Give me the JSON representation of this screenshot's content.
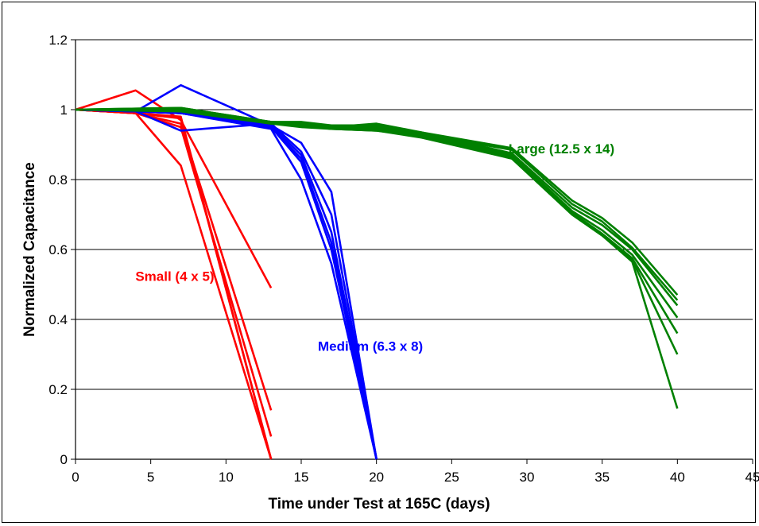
{
  "chart_data": {
    "type": "line",
    "title": "",
    "xlabel": "Time under Test at 165C (days)",
    "ylabel": "Normalized Capacitance",
    "xlim": [
      0,
      45
    ],
    "ylim": [
      0,
      1.2
    ],
    "xticks": [
      "0",
      "5",
      "10",
      "15",
      "20",
      "25",
      "30",
      "35",
      "40",
      "45"
    ],
    "yticks": [
      "0",
      "0.2",
      "0.4",
      "0.6",
      "0.8",
      "1",
      "1.2"
    ],
    "grid": "horizontal",
    "legend": "none",
    "groups": [
      {
        "label": "Small (4 x 5)",
        "color": "#ff0000",
        "label_at": [
          6.6,
          0.51
        ],
        "series": [
          {
            "x": [
              0,
              4,
              7,
              13
            ],
            "y": [
              1.0,
              1.055,
              0.97,
              0.49
            ]
          },
          {
            "x": [
              0,
              4,
              7,
              13
            ],
            "y": [
              1.0,
              0.99,
              0.96,
              0.14
            ]
          },
          {
            "x": [
              0,
              4,
              7,
              13
            ],
            "y": [
              1.0,
              0.99,
              0.95,
              0.065
            ]
          },
          {
            "x": [
              0,
              4,
              7,
              13
            ],
            "y": [
              1.0,
              0.99,
              0.975,
              0.0
            ]
          },
          {
            "x": [
              0,
              4,
              7,
              13
            ],
            "y": [
              1.0,
              0.99,
              0.84,
              0.0
            ]
          },
          {
            "x": [
              0,
              4,
              7,
              13
            ],
            "y": [
              1.0,
              0.99,
              0.98,
              0.0
            ]
          }
        ]
      },
      {
        "label": "Medium (6.3 x 8)",
        "color": "#0000ff",
        "label_at": [
          19.6,
          0.31
        ],
        "series": [
          {
            "x": [
              0,
              4,
              7,
              13,
              15,
              17,
              20
            ],
            "y": [
              1.0,
              0.995,
              1.07,
              0.955,
              0.905,
              0.765,
              0.0
            ]
          },
          {
            "x": [
              0,
              4,
              7,
              13,
              15,
              17,
              20
            ],
            "y": [
              1.0,
              0.995,
              0.94,
              0.96,
              0.88,
              0.7,
              0.0
            ]
          },
          {
            "x": [
              0,
              4,
              7,
              13,
              15,
              17,
              20
            ],
            "y": [
              1.0,
              0.995,
              0.99,
              0.955,
              0.87,
              0.65,
              0.0
            ]
          },
          {
            "x": [
              0,
              4,
              7,
              13,
              15,
              17,
              20
            ],
            "y": [
              1.0,
              0.995,
              0.99,
              0.95,
              0.85,
              0.6,
              0.0
            ]
          },
          {
            "x": [
              0,
              4,
              7,
              13,
              15,
              17,
              20
            ],
            "y": [
              1.0,
              0.995,
              0.99,
              0.945,
              0.8,
              0.56,
              0.0
            ]
          },
          {
            "x": [
              0,
              4,
              7,
              13,
              15,
              17,
              20
            ],
            "y": [
              1.0,
              0.995,
              0.99,
              0.95,
              0.86,
              0.62,
              0.0
            ]
          }
        ]
      },
      {
        "label": "Large (12.5 x 14)",
        "color": "#008000",
        "label_at": [
          32.3,
          0.875
        ],
        "series": [
          {
            "x": [
              0,
              7,
              13,
              15,
              17,
              20,
              23,
              29,
              33,
              35,
              37,
              40
            ],
            "y": [
              1.0,
              1.005,
              0.965,
              0.965,
              0.955,
              0.955,
              0.935,
              0.89,
              0.74,
              0.69,
              0.62,
              0.47
            ]
          },
          {
            "x": [
              0,
              7,
              13,
              15,
              17,
              20,
              23,
              29,
              33,
              35,
              37,
              40
            ],
            "y": [
              1.0,
              1.005,
              0.965,
              0.96,
              0.95,
              0.95,
              0.93,
              0.885,
              0.73,
              0.68,
              0.605,
              0.455
            ]
          },
          {
            "x": [
              0,
              7,
              13,
              15,
              17,
              20,
              23,
              29,
              33,
              35,
              37,
              40
            ],
            "y": [
              1.0,
              1.0,
              0.965,
              0.96,
              0.95,
              0.96,
              0.935,
              0.875,
              0.72,
              0.67,
              0.6,
              0.44
            ]
          },
          {
            "x": [
              0,
              7,
              13,
              15,
              17,
              20,
              23,
              29,
              33,
              35,
              37,
              40
            ],
            "y": [
              1.0,
              1.0,
              0.96,
              0.955,
              0.95,
              0.945,
              0.93,
              0.87,
              0.71,
              0.655,
              0.585,
              0.405
            ]
          },
          {
            "x": [
              0,
              7,
              13,
              15,
              17,
              20,
              23,
              29,
              33,
              35,
              37,
              40
            ],
            "y": [
              1.0,
              1.0,
              0.96,
              0.955,
              0.945,
              0.945,
              0.925,
              0.865,
              0.705,
              0.645,
              0.575,
              0.36
            ]
          },
          {
            "x": [
              0,
              7,
              13,
              15,
              17,
              20,
              23,
              29,
              33,
              35,
              37,
              40
            ],
            "y": [
              1.0,
              1.0,
              0.96,
              0.955,
              0.945,
              0.94,
              0.925,
              0.86,
              0.7,
              0.64,
              0.57,
              0.3
            ]
          },
          {
            "x": [
              0,
              7,
              13,
              15,
              17,
              20,
              23,
              29,
              33,
              35,
              37,
              40
            ],
            "y": [
              1.0,
              0.995,
              0.96,
              0.95,
              0.945,
              0.94,
              0.92,
              0.86,
              0.7,
              0.64,
              0.565,
              0.145
            ]
          }
        ]
      }
    ]
  }
}
